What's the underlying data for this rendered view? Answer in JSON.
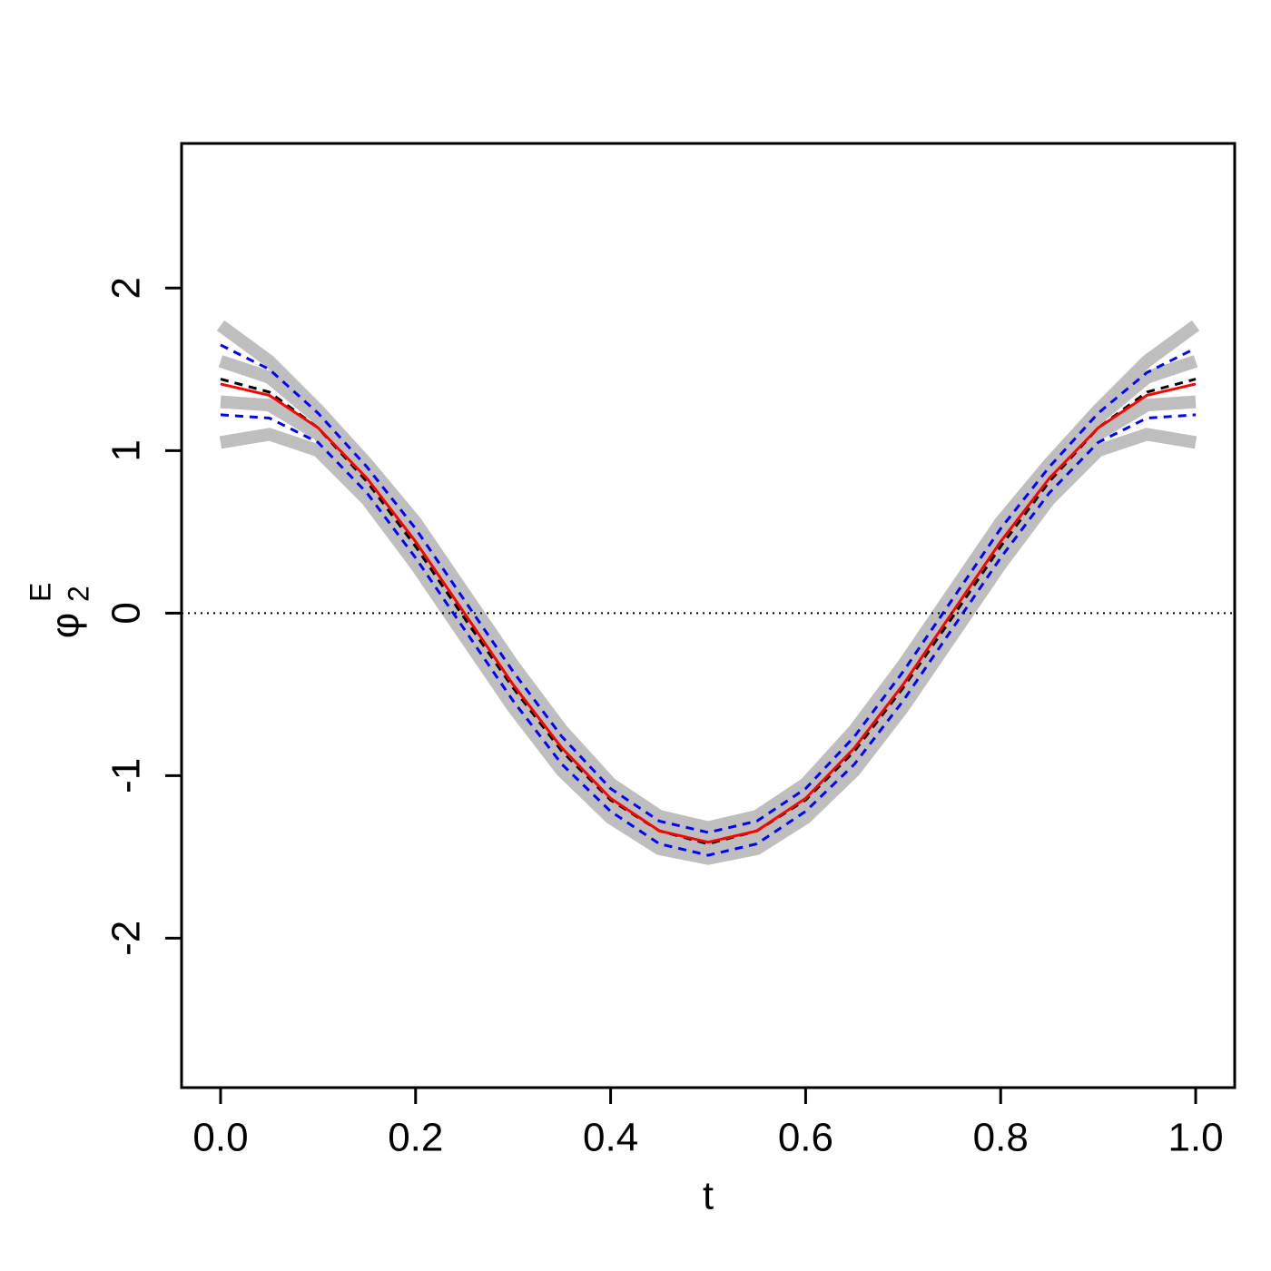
{
  "chart_data": {
    "type": "line",
    "x_label": "t",
    "y_label": {
      "symbol": "φ",
      "subscript": "2",
      "superscript": "E"
    },
    "x": [
      0,
      0.05,
      0.1,
      0.15,
      0.2,
      0.25,
      0.3,
      0.35,
      0.4,
      0.45,
      0.5,
      0.55,
      0.6,
      0.65,
      0.7,
      0.75,
      0.8,
      0.85,
      0.9,
      0.95,
      1.0
    ],
    "series": [
      {
        "color": "#bebebe",
        "line_style": "solid",
        "values": [
          1.77,
          1.55,
          1.25,
          0.92,
          0.56,
          0.12,
          -0.32,
          -0.72,
          -1.05,
          -1.25,
          -1.32,
          -1.25,
          -1.05,
          -0.72,
          -0.32,
          0.12,
          0.56,
          0.92,
          1.25,
          1.55,
          1.77
        ]
      },
      {
        "color": "#bebebe",
        "line_style": "solid",
        "values": [
          1.55,
          1.45,
          1.2,
          0.86,
          0.47,
          0.03,
          -0.42,
          -0.8,
          -1.12,
          -1.31,
          -1.38,
          -1.31,
          -1.12,
          -0.8,
          -0.42,
          0.03,
          0.47,
          0.86,
          1.2,
          1.45,
          1.55
        ]
      },
      {
        "color": "#bebebe",
        "line_style": "solid",
        "values": [
          1.3,
          1.28,
          1.1,
          0.78,
          0.38,
          -0.06,
          -0.5,
          -0.89,
          -1.19,
          -1.38,
          -1.45,
          -1.38,
          -1.19,
          -0.89,
          -0.5,
          -0.06,
          0.38,
          0.78,
          1.1,
          1.28,
          1.3
        ]
      },
      {
        "color": "#bebebe",
        "line_style": "solid",
        "values": [
          1.05,
          1.1,
          1.0,
          0.7,
          0.3,
          -0.14,
          -0.58,
          -0.97,
          -1.26,
          -1.45,
          -1.51,
          -1.45,
          -1.26,
          -0.97,
          -0.58,
          -0.14,
          0.3,
          0.7,
          1.0,
          1.1,
          1.05
        ]
      },
      {
        "color": "#000000",
        "line_style": "dashed",
        "values": [
          1.44,
          1.36,
          1.14,
          0.81,
          0.41,
          -0.03,
          -0.46,
          -0.85,
          -1.15,
          -1.34,
          -1.42,
          -1.34,
          -1.15,
          -0.85,
          -0.46,
          -0.03,
          0.41,
          0.81,
          1.14,
          1.36,
          1.44
        ]
      },
      {
        "color": "#0000ff",
        "line_style": "dashed",
        "values": [
          1.65,
          1.5,
          1.23,
          0.9,
          0.52,
          0.08,
          -0.36,
          -0.76,
          -1.08,
          -1.28,
          -1.35,
          -1.28,
          -1.08,
          -0.76,
          -0.36,
          0.08,
          0.52,
          0.9,
          1.23,
          1.48,
          1.63
        ]
      },
      {
        "color": "#0000ff",
        "line_style": "dashed",
        "values": [
          1.22,
          1.2,
          1.05,
          0.74,
          0.34,
          -0.1,
          -0.54,
          -0.93,
          -1.22,
          -1.42,
          -1.49,
          -1.42,
          -1.22,
          -0.93,
          -0.54,
          -0.1,
          0.34,
          0.74,
          1.05,
          1.2,
          1.22
        ]
      },
      {
        "color": "#ff0000",
        "line_style": "solid",
        "values": [
          1.41,
          1.34,
          1.14,
          0.83,
          0.44,
          0,
          -0.44,
          -0.83,
          -1.14,
          -1.34,
          -1.41,
          -1.34,
          -1.14,
          -0.83,
          -0.44,
          0,
          0.44,
          0.83,
          1.14,
          1.34,
          1.41
        ]
      }
    ],
    "hline": 0,
    "xlim": [
      -0.04,
      1.04
    ],
    "ylim": [
      -2.92,
      2.89
    ],
    "xticks": [
      {
        "value": 0,
        "label": "0.0"
      },
      {
        "value": 0.2,
        "label": "0.2"
      },
      {
        "value": 0.4,
        "label": "0.4"
      },
      {
        "value": 0.6,
        "label": "0.6"
      },
      {
        "value": 0.8,
        "label": "0.8"
      },
      {
        "value": 1.0,
        "label": "1.0"
      }
    ],
    "yticks": [
      -2,
      -1,
      0,
      1,
      2
    ],
    "grid": false
  }
}
